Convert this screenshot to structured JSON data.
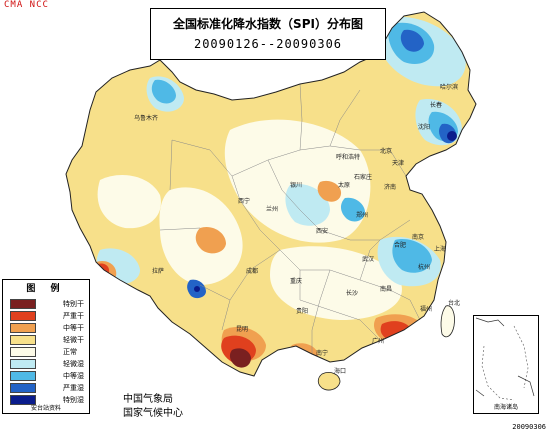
{
  "corner_tag": "CMA NCC",
  "title": {
    "main": "全国标准化降水指数（SPI）分布图",
    "period": "20090126--20090306"
  },
  "legend": {
    "title": "图 例",
    "items": [
      {
        "label": "特别干",
        "color": "#7a2020"
      },
      {
        "label": "严重干",
        "color": "#e0401e"
      },
      {
        "label": "中等干",
        "color": "#f0a050"
      },
      {
        "label": "轻微干",
        "color": "#f7e08a"
      },
      {
        "label": "正常",
        "color": "#fdfbe8"
      },
      {
        "label": "轻微湿",
        "color": "#bfeaf2"
      },
      {
        "label": "中等湿",
        "color": "#4fb9e6"
      },
      {
        "label": "严重湿",
        "color": "#2363c6"
      },
      {
        "label": "特别湿",
        "color": "#0a1c8c"
      }
    ],
    "source": "安台站资料"
  },
  "issuer": {
    "line1": "中国气象局",
    "line2": "国家气候中心"
  },
  "inset_label": "南海诸岛",
  "date_stamp": "20090306",
  "cities": [
    {
      "name": "乌鲁木齐",
      "key": "urumqi"
    },
    {
      "name": "呼和浩特",
      "key": "hohhot"
    },
    {
      "name": "哈尔滨",
      "key": "harbin"
    },
    {
      "name": "长春",
      "key": "changchun"
    },
    {
      "name": "沈阳",
      "key": "shenyang"
    },
    {
      "name": "北京",
      "key": "beijing"
    },
    {
      "name": "天津",
      "key": "tianjin"
    },
    {
      "name": "石家庄",
      "key": "shijiazhuang"
    },
    {
      "name": "太原",
      "key": "taiyuan"
    },
    {
      "name": "济南",
      "key": "jinan"
    },
    {
      "name": "银川",
      "key": "yinchuan"
    },
    {
      "name": "西宁",
      "key": "xining"
    },
    {
      "name": "兰州",
      "key": "lanzhou"
    },
    {
      "name": "西安",
      "key": "xian"
    },
    {
      "name": "郑州",
      "key": "zhengzhou"
    },
    {
      "name": "合肥",
      "key": "hefei"
    },
    {
      "name": "南京",
      "key": "nanjing"
    },
    {
      "name": "上海",
      "key": "shanghai"
    },
    {
      "name": "武汉",
      "key": "wuhan"
    },
    {
      "name": "杭州",
      "key": "hangzhou"
    },
    {
      "name": "拉萨",
      "key": "lhasa"
    },
    {
      "name": "成都",
      "key": "chengdu"
    },
    {
      "name": "重庆",
      "key": "chongqing"
    },
    {
      "name": "长沙",
      "key": "changsha"
    },
    {
      "name": "南昌",
      "key": "nanchang"
    },
    {
      "name": "福州",
      "key": "fuzhou"
    },
    {
      "name": "贵阳",
      "key": "guiyang"
    },
    {
      "name": "昆明",
      "key": "kunming"
    },
    {
      "name": "南宁",
      "key": "nanning"
    },
    {
      "name": "广州",
      "key": "guangzhou"
    },
    {
      "name": "海口",
      "key": "haikou"
    },
    {
      "name": "台北",
      "key": "taipei"
    }
  ]
}
